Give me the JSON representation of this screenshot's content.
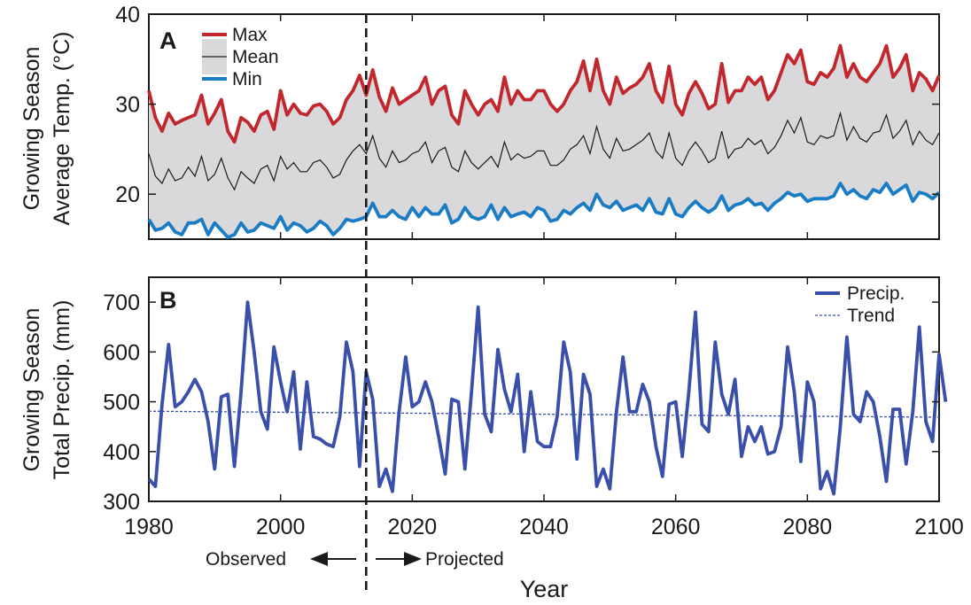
{
  "chart_data": [
    {
      "type": "line",
      "panel_label": "A",
      "ylabel_line1": "Growing Season",
      "ylabel_line2": "Average Temp. (°C)",
      "xlim": [
        1980,
        2100
      ],
      "ylim": [
        15,
        40
      ],
      "yticks": [
        20,
        30,
        40
      ],
      "legend": {
        "position": "top-left",
        "entries": [
          "Max",
          "Mean",
          "Min"
        ]
      },
      "band_fill": "#d9d9db",
      "x_start": 1980,
      "series": [
        {
          "name": "Max",
          "color": "#c1272d",
          "values": [
            31.5,
            28.5,
            27.0,
            29.0,
            27.8,
            28.2,
            28.5,
            28.8,
            31.0,
            27.8,
            29.0,
            30.5,
            27.0,
            25.8,
            28.5,
            28.0,
            27.0,
            28.8,
            29.2,
            27.2,
            31.5,
            28.8,
            30.0,
            29.0,
            28.8,
            29.8,
            30.0,
            29.2,
            27.8,
            28.5,
            30.5,
            31.5,
            33.2,
            31.0,
            33.8,
            30.8,
            29.2,
            31.8,
            30.0,
            30.5,
            31.0,
            31.5,
            33.0,
            30.0,
            31.5,
            32.0,
            28.8,
            27.8,
            31.5,
            30.0,
            28.8,
            30.0,
            30.5,
            29.2,
            33.0,
            30.0,
            31.5,
            30.5,
            30.5,
            31.5,
            31.5,
            30.0,
            29.2,
            30.0,
            31.5,
            32.5,
            34.8,
            31.5,
            35.0,
            31.5,
            30.0,
            33.0,
            31.2,
            31.8,
            32.2,
            33.0,
            34.5,
            31.5,
            30.2,
            34.2,
            30.0,
            28.8,
            31.2,
            32.5,
            31.2,
            29.5,
            30.0,
            34.5,
            30.2,
            31.5,
            31.5,
            33.0,
            32.2,
            33.0,
            30.5,
            31.5,
            33.5,
            35.5,
            34.5,
            36.0,
            32.5,
            32.2,
            33.5,
            33.0,
            34.0,
            36.5,
            33.0,
            34.5,
            33.0,
            32.5,
            33.5,
            34.5,
            36.5,
            33.0,
            34.0,
            35.5,
            31.5,
            33.5,
            32.8,
            31.5,
            33.2
          ]
        },
        {
          "name": "Mean",
          "color": "#1a1a1a",
          "values": [
            24.5,
            22.0,
            21.2,
            22.8,
            21.5,
            21.8,
            23.0,
            22.0,
            24.2,
            21.5,
            22.2,
            24.0,
            21.8,
            20.5,
            22.5,
            21.8,
            21.2,
            22.8,
            23.2,
            21.5,
            24.2,
            22.8,
            23.5,
            22.5,
            22.5,
            23.5,
            23.8,
            23.0,
            21.8,
            22.2,
            23.8,
            24.8,
            25.5,
            24.5,
            26.5,
            24.0,
            23.0,
            24.8,
            23.5,
            23.8,
            24.5,
            24.8,
            25.8,
            23.5,
            24.8,
            25.2,
            23.0,
            22.5,
            24.8,
            23.5,
            22.8,
            23.5,
            24.2,
            23.0,
            25.8,
            23.8,
            24.5,
            24.0,
            24.2,
            24.8,
            24.8,
            23.2,
            23.2,
            23.8,
            25.0,
            25.5,
            26.5,
            24.5,
            27.5,
            25.0,
            24.0,
            26.2,
            24.8,
            25.0,
            25.5,
            26.0,
            26.8,
            24.8,
            24.0,
            26.8,
            24.0,
            23.2,
            24.8,
            25.8,
            24.8,
            23.5,
            24.0,
            27.0,
            24.0,
            25.0,
            25.2,
            26.2,
            25.5,
            26.0,
            24.5,
            25.2,
            26.5,
            28.2,
            26.8,
            28.5,
            25.8,
            25.5,
            26.5,
            26.2,
            26.5,
            29.0,
            26.0,
            27.5,
            26.2,
            25.8,
            26.8,
            27.0,
            28.8,
            26.2,
            27.0,
            28.2,
            25.5,
            27.0,
            26.0,
            25.5,
            26.8
          ]
        },
        {
          "name": "Min",
          "color": "#1a7cc4",
          "values": [
            17.2,
            16.0,
            16.2,
            16.8,
            15.8,
            15.5,
            16.8,
            16.8,
            17.2,
            15.5,
            16.8,
            16.0,
            15.2,
            15.5,
            16.8,
            15.8,
            16.0,
            16.8,
            16.5,
            16.2,
            17.5,
            16.0,
            16.8,
            16.5,
            15.8,
            16.2,
            17.0,
            16.5,
            15.5,
            16.2,
            17.2,
            17.0,
            17.2,
            17.5,
            19.0,
            17.5,
            17.5,
            18.2,
            17.5,
            17.2,
            18.5,
            17.5,
            18.5,
            17.8,
            17.8,
            18.8,
            16.8,
            17.2,
            18.5,
            17.5,
            17.2,
            17.5,
            18.8,
            17.2,
            18.5,
            17.5,
            17.8,
            18.0,
            17.5,
            18.5,
            18.2,
            17.0,
            17.2,
            18.2,
            17.8,
            18.5,
            19.0,
            18.2,
            20.0,
            18.8,
            18.5,
            19.2,
            18.2,
            18.5,
            18.8,
            18.2,
            19.5,
            18.0,
            17.8,
            19.5,
            17.8,
            17.5,
            18.5,
            19.2,
            18.5,
            18.0,
            18.5,
            19.8,
            18.2,
            18.8,
            19.0,
            19.5,
            18.8,
            19.0,
            18.2,
            19.0,
            19.5,
            20.2,
            19.8,
            20.0,
            19.2,
            19.5,
            19.5,
            19.5,
            19.8,
            21.2,
            20.0,
            20.5,
            19.8,
            19.5,
            20.5,
            20.2,
            21.2,
            20.0,
            20.5,
            21.0,
            19.2,
            20.2,
            20.0,
            19.5,
            20.2
          ]
        }
      ]
    },
    {
      "type": "line",
      "panel_label": "B",
      "ylabel_line1": "Growing Season",
      "ylabel_line2": "Total Precip. (mm)",
      "xlim": [
        1980,
        2100
      ],
      "ylim": [
        300,
        750
      ],
      "yticks": [
        300,
        400,
        500,
        600,
        700
      ],
      "xticks": [
        1980,
        2000,
        2020,
        2040,
        2060,
        2080,
        2100
      ],
      "xlabel": "Year",
      "legend": {
        "position": "top-right",
        "entries": [
          "Precip.",
          "Trend"
        ]
      },
      "x_start": 1980,
      "series": [
        {
          "name": "Precip.",
          "color": "#3a4faa",
          "values": [
            345,
            330,
            495,
            615,
            490,
            500,
            520,
            545,
            520,
            460,
            365,
            510,
            515,
            370,
            520,
            700,
            600,
            480,
            445,
            610,
            540,
            480,
            560,
            405,
            540,
            430,
            425,
            415,
            410,
            470,
            620,
            560,
            370,
            560,
            505,
            330,
            365,
            320,
            480,
            590,
            490,
            500,
            540,
            500,
            430,
            355,
            505,
            500,
            365,
            520,
            690,
            475,
            440,
            605,
            525,
            480,
            555,
            400,
            520,
            420,
            410,
            410,
            470,
            620,
            560,
            385,
            555,
            515,
            330,
            365,
            325,
            480,
            590,
            480,
            480,
            535,
            500,
            410,
            350,
            495,
            500,
            390,
            520,
            680,
            455,
            440,
            620,
            515,
            475,
            545,
            390,
            450,
            420,
            450,
            395,
            400,
            450,
            610,
            520,
            380,
            540,
            500,
            325,
            360,
            315,
            450,
            630,
            475,
            460,
            520,
            500,
            430,
            340,
            485,
            485,
            375,
            480,
            650,
            460,
            420,
            595,
            500
          ]
        },
        {
          "name": "Trend",
          "color": "#3a4faa",
          "values": [
            481,
            469
          ]
        }
      ]
    }
  ],
  "divider_year": 2013,
  "annotations": {
    "left": "Observed",
    "right": "Projected"
  }
}
